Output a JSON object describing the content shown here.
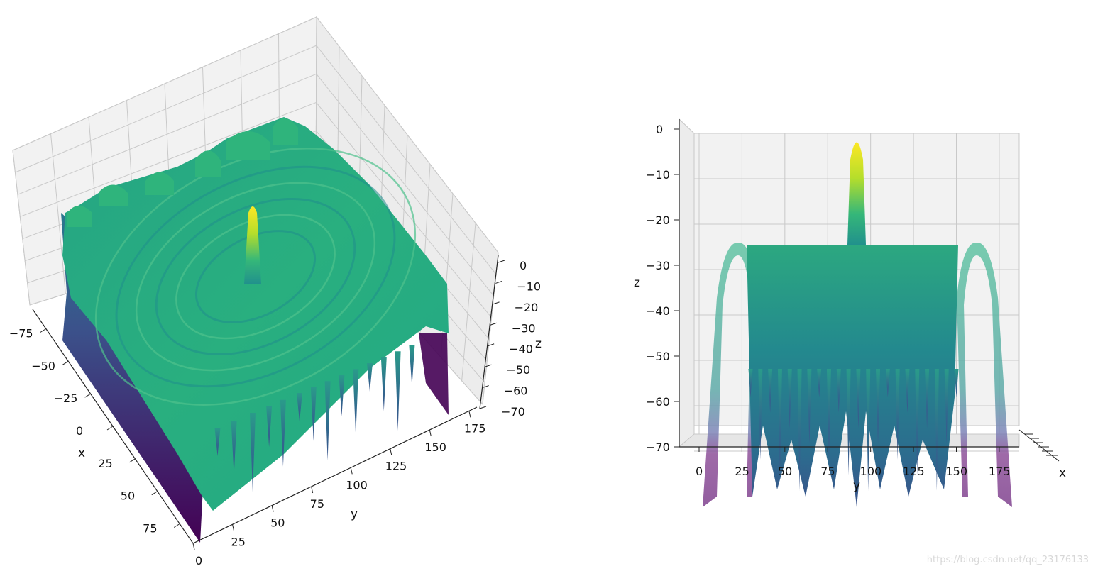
{
  "chart_data": [
    {
      "type": "surface",
      "view": "elevated-oblique",
      "colormap": "viridis",
      "xlabel": "x",
      "ylabel": "y",
      "zlabel": "z",
      "x_ticks": [
        "−75",
        "−50",
        "−25",
        "0",
        "25",
        "50",
        "75"
      ],
      "y_ticks": [
        "0",
        "25",
        "50",
        "75",
        "100",
        "125",
        "150",
        "175"
      ],
      "z_ticks": [
        "0",
        "−10",
        "−20",
        "−30",
        "−40",
        "−50",
        "−60",
        "−70"
      ],
      "xlim": [
        -90,
        90
      ],
      "ylim": [
        0,
        180
      ],
      "zlim": [
        -70,
        0
      ],
      "grid": true,
      "peak": {
        "x": 0,
        "y": 90,
        "z": 0
      },
      "sidelobe_level": -26
    },
    {
      "type": "surface",
      "view": "side (x-z plane)",
      "colormap": "viridis",
      "xlabel": "x",
      "ylabel": "y",
      "zlabel": "z",
      "y_ticks": [
        "0",
        "25",
        "50",
        "75",
        "100",
        "125",
        "150",
        "175"
      ],
      "z_ticks": [
        "0",
        "−10",
        "−20",
        "−30",
        "−40",
        "−50",
        "−60",
        "−70"
      ],
      "ylim": [
        0,
        180
      ],
      "zlim": [
        -70,
        0
      ],
      "grid": true,
      "peak": {
        "y": 90,
        "z": 0
      },
      "sidelobe_level": -26
    }
  ],
  "watermark": "https://blog.csdn.net/qq_23176133"
}
